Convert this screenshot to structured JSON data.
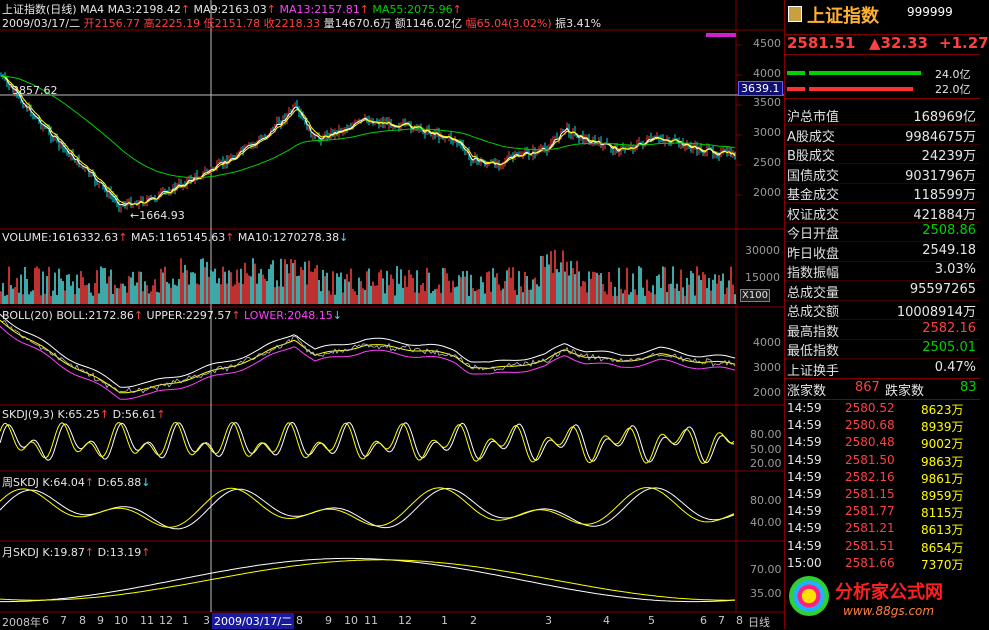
{
  "colors": {
    "up": "#ff4040",
    "down": "#00d000",
    "grid": "#800000",
    "accent": "#ff40ff"
  },
  "main": {
    "title": "上证指数(日线)",
    "ma_label": "MA4",
    "ma3": "MA3:2198.42",
    "ma9": "MA9:2163.03",
    "ma13": "MA13:2157.81",
    "ma55": "MA55:2075.96",
    "date": "2009/03/17/二",
    "open": "开2156.77",
    "high": "高2225.19",
    "low": "低2151.78",
    "close": "收2218.33",
    "vol": "量14670.6万",
    "amount": "额1146.02亿",
    "change": "幅65.04(3.02%)",
    "amplitude": "振3.41%",
    "high_mark": "3857.62",
    "low_mark": "←1664.93",
    "cursor_price": "3639.1",
    "y_ticks": [
      "4500",
      "4000",
      "3500",
      "3000",
      "2500",
      "2000"
    ]
  },
  "volume": {
    "label": "VOLUME:1616332.63",
    "ma5": "MA5:1165145.63",
    "ma10": "MA10:1270278.38",
    "y_ticks": [
      "30000",
      "15000"
    ],
    "unit": "X100"
  },
  "boll": {
    "label": "BOLL(20)",
    "boll": "BOLL:2172.86",
    "upper": "UPPER:2297.57",
    "lower": "LOWER:2048.15",
    "y_ticks": [
      "4000",
      "3000",
      "2000"
    ]
  },
  "skdj": {
    "label": "SKDJ(9,3)",
    "k": "K:65.25",
    "d": "D:56.61",
    "y_ticks": [
      "80.00",
      "50.00",
      "20.00"
    ]
  },
  "wskdj": {
    "label": "周SKDJ",
    "k": "K:64.04",
    "d": "D:65.88",
    "y_ticks": [
      "80.00",
      "40.00"
    ]
  },
  "mskdj": {
    "label": "月SKDJ",
    "k": "K:19.87",
    "d": "D:13.19",
    "y_ticks": [
      "70.00",
      "35.00"
    ]
  },
  "xaxis": {
    "year": "2008年",
    "months": [
      "6",
      "7",
      "8",
      "9",
      "10",
      "11",
      "12",
      "1",
      "3"
    ],
    "cursor_date": "2009/03/17/二",
    "months2": [
      "8",
      "9",
      "10",
      "11",
      "12",
      "1",
      "2",
      "3",
      "4",
      "5",
      "6",
      "7",
      "8"
    ],
    "period": "日线"
  },
  "side": {
    "name": "上证指数",
    "code": "999999",
    "price": "2581.51",
    "change": "▲32.33",
    "pct": "+1.27",
    "bar1": "24.0亿",
    "bar2": "22.0亿",
    "stats": [
      {
        "label": "沪总市值",
        "value": "168969亿",
        "color": "wht"
      },
      {
        "label": "A股成交",
        "value": "9984675万",
        "color": "wht"
      },
      {
        "label": "B股成交",
        "value": "24239万",
        "color": "wht"
      },
      {
        "label": "国债成交",
        "value": "9031796万",
        "color": "wht"
      },
      {
        "label": "基金成交",
        "value": "118599万",
        "color": "wht"
      },
      {
        "label": "权证成交",
        "value": "421884万",
        "color": "wht"
      },
      {
        "label": "今日开盘",
        "value": "2508.86",
        "color": "grn"
      },
      {
        "label": "昨日收盘",
        "value": "2549.18",
        "color": "wht"
      },
      {
        "label": "指数振幅",
        "value": "3.03%",
        "color": "wht"
      },
      {
        "label": "总成交量",
        "value": "95597265",
        "color": "wht"
      },
      {
        "label": "总成交额",
        "value": "10008914万",
        "color": "wht"
      },
      {
        "label": "最高指数",
        "value": "2582.16",
        "color": "red"
      },
      {
        "label": "最低指数",
        "value": "2505.01",
        "color": "grn"
      },
      {
        "label": "上证换手",
        "value": "0.47%",
        "color": "wht"
      }
    ],
    "up_label": "涨家数",
    "up_count": "867",
    "down_label": "跌家数",
    "down_count": "83",
    "ticks": [
      {
        "t": "14:59",
        "p": "2580.52",
        "v": "8623万"
      },
      {
        "t": "14:59",
        "p": "2580.68",
        "v": "8939万"
      },
      {
        "t": "14:59",
        "p": "2580.48",
        "v": "9002万"
      },
      {
        "t": "14:59",
        "p": "2581.50",
        "v": "9863万"
      },
      {
        "t": "14:59",
        "p": "2582.16",
        "v": "9861万"
      },
      {
        "t": "14:59",
        "p": "2581.15",
        "v": "8959万"
      },
      {
        "t": "14:59",
        "p": "2581.77",
        "v": "8115万"
      },
      {
        "t": "14:59",
        "p": "2581.21",
        "v": "8613万"
      },
      {
        "t": "14:59",
        "p": "2581.51",
        "v": "8654万"
      },
      {
        "t": "15:00",
        "p": "2581.66",
        "v": "7370万"
      }
    ],
    "watermark": "分析家公式网",
    "watermark_url": "www.88gs.com"
  }
}
